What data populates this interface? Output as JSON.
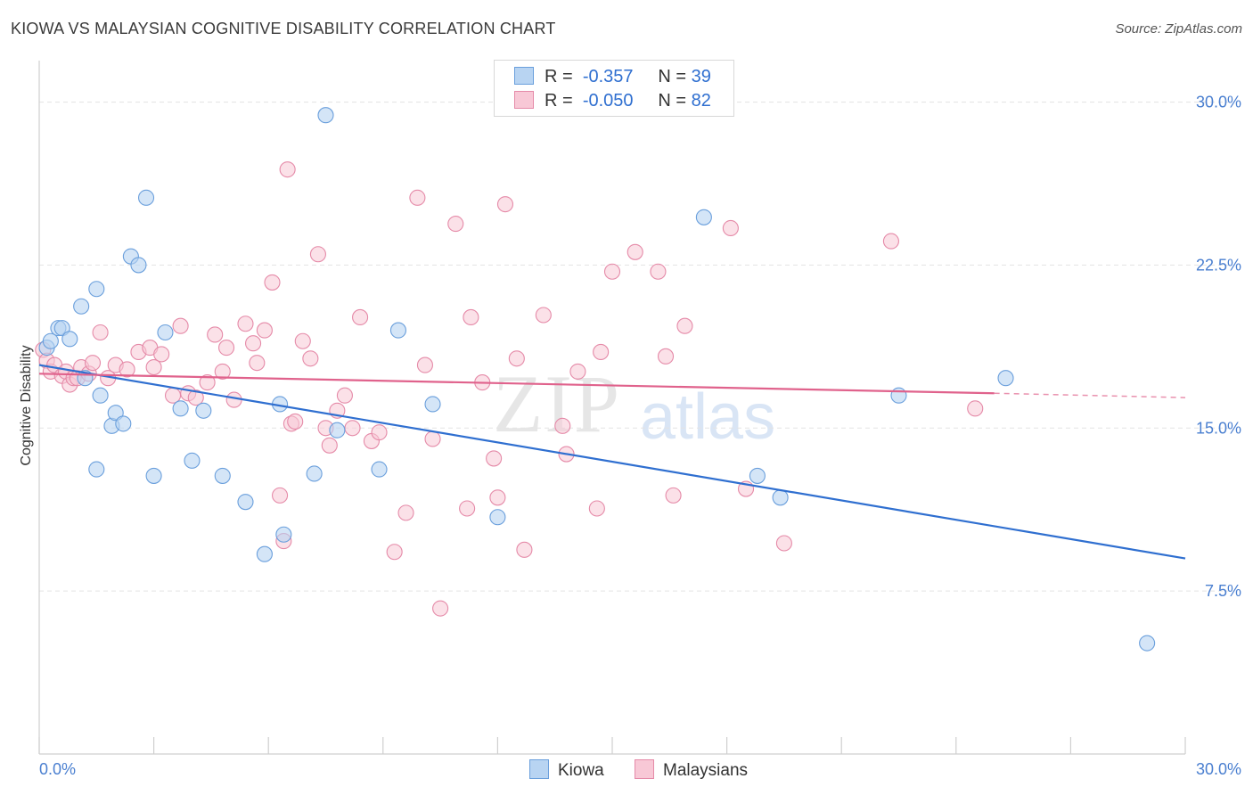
{
  "header": {
    "title": "KIOWA VS MALAYSIAN COGNITIVE DISABILITY CORRELATION CHART",
    "source": "Source: ZipAtlas.com"
  },
  "watermark": {
    "zip": "ZIP",
    "atlas": "atlas"
  },
  "legend": {
    "rows": [
      {
        "r_label": "R =",
        "r_value": "-0.357",
        "n_label": "N =",
        "n_value": "39"
      },
      {
        "r_label": "R =",
        "r_value": "-0.050",
        "n_label": "N =",
        "n_value": "82"
      }
    ]
  },
  "bottom_legend": {
    "kiowa": "Kiowa",
    "malaysians": "Malaysians"
  },
  "colors": {
    "kiowa_fill": "#b8d4f2",
    "kiowa_stroke": "#6a9fdc",
    "kiowa_line": "#2f6fd0",
    "malay_fill": "#f8c8d6",
    "malay_stroke": "#e58aa8",
    "malay_line": "#e0628c",
    "tick_text": "#4a7fd0",
    "grid": "#e3e3e3"
  },
  "chart_data": {
    "type": "scatter",
    "title": "KIOWA VS MALAYSIAN COGNITIVE DISABILITY CORRELATION CHART",
    "xlabel": "",
    "ylabel": "Cognitive Disability",
    "xlim": [
      0,
      30
    ],
    "ylim": [
      0,
      31.5
    ],
    "x_tick_labels": [
      "0.0%",
      "30.0%"
    ],
    "y_ticks": [
      7.5,
      15.0,
      22.5,
      30.0
    ],
    "y_tick_labels": [
      "7.5%",
      "15.0%",
      "22.5%",
      "30.0%"
    ],
    "grid": "horizontal dashed",
    "legend_position": "top-center",
    "series": [
      {
        "name": "Kiowa",
        "r": -0.357,
        "n": 39,
        "trend": {
          "x": [
            0.0,
            30.0
          ],
          "y": [
            17.9,
            9.0
          ]
        },
        "points": [
          [
            0.2,
            18.7
          ],
          [
            0.3,
            19.0
          ],
          [
            0.5,
            19.6
          ],
          [
            0.6,
            19.6
          ],
          [
            0.8,
            19.1
          ],
          [
            1.1,
            20.6
          ],
          [
            1.2,
            17.3
          ],
          [
            1.5,
            21.4
          ],
          [
            1.6,
            16.5
          ],
          [
            1.5,
            13.1
          ],
          [
            1.9,
            15.1
          ],
          [
            2.0,
            15.7
          ],
          [
            2.2,
            15.2
          ],
          [
            2.4,
            22.9
          ],
          [
            2.6,
            22.5
          ],
          [
            2.8,
            25.6
          ],
          [
            3.0,
            12.8
          ],
          [
            3.3,
            19.4
          ],
          [
            3.7,
            15.9
          ],
          [
            4.0,
            13.5
          ],
          [
            4.3,
            15.8
          ],
          [
            4.8,
            12.8
          ],
          [
            5.4,
            11.6
          ],
          [
            5.9,
            9.2
          ],
          [
            6.3,
            16.1
          ],
          [
            6.4,
            10.1
          ],
          [
            7.2,
            12.9
          ],
          [
            7.5,
            29.4
          ],
          [
            7.8,
            14.9
          ],
          [
            8.9,
            13.1
          ],
          [
            9.4,
            19.5
          ],
          [
            10.3,
            16.1
          ],
          [
            12.0,
            10.9
          ],
          [
            17.4,
            24.7
          ],
          [
            18.8,
            12.8
          ],
          [
            19.4,
            11.8
          ],
          [
            22.5,
            16.5
          ],
          [
            25.3,
            17.3
          ],
          [
            29.0,
            5.1
          ]
        ]
      },
      {
        "name": "Malaysians",
        "r": -0.05,
        "n": 82,
        "trend": {
          "x": [
            0.0,
            25.0
          ],
          "y": [
            17.5,
            16.6
          ]
        },
        "trend_dashed": {
          "x": [
            25.0,
            30.0
          ],
          "y": [
            16.6,
            16.4
          ]
        },
        "points": [
          [
            0.1,
            18.6
          ],
          [
            0.2,
            18.1
          ],
          [
            0.3,
            17.6
          ],
          [
            0.4,
            17.9
          ],
          [
            0.6,
            17.4
          ],
          [
            0.7,
            17.6
          ],
          [
            0.8,
            17.0
          ],
          [
            0.9,
            17.3
          ],
          [
            1.0,
            17.3
          ],
          [
            1.1,
            17.8
          ],
          [
            1.3,
            17.5
          ],
          [
            1.4,
            18.0
          ],
          [
            1.6,
            19.4
          ],
          [
            1.8,
            17.3
          ],
          [
            2.0,
            17.9
          ],
          [
            2.3,
            17.7
          ],
          [
            2.6,
            18.5
          ],
          [
            2.9,
            18.7
          ],
          [
            3.0,
            17.8
          ],
          [
            3.2,
            18.4
          ],
          [
            3.5,
            16.5
          ],
          [
            3.7,
            19.7
          ],
          [
            3.9,
            16.6
          ],
          [
            4.1,
            16.4
          ],
          [
            4.4,
            17.1
          ],
          [
            4.6,
            19.3
          ],
          [
            4.8,
            17.6
          ],
          [
            4.9,
            18.7
          ],
          [
            5.1,
            16.3
          ],
          [
            5.4,
            19.8
          ],
          [
            5.6,
            18.9
          ],
          [
            5.7,
            18.0
          ],
          [
            5.9,
            19.5
          ],
          [
            6.1,
            21.7
          ],
          [
            6.3,
            11.9
          ],
          [
            6.4,
            9.8
          ],
          [
            6.5,
            26.9
          ],
          [
            6.6,
            15.2
          ],
          [
            6.7,
            15.3
          ],
          [
            6.9,
            19.0
          ],
          [
            7.1,
            18.2
          ],
          [
            7.3,
            23.0
          ],
          [
            7.5,
            15.0
          ],
          [
            7.6,
            14.2
          ],
          [
            7.8,
            15.8
          ],
          [
            8.0,
            16.5
          ],
          [
            8.2,
            15.0
          ],
          [
            8.4,
            20.1
          ],
          [
            8.7,
            14.4
          ],
          [
            8.9,
            14.8
          ],
          [
            9.3,
            9.3
          ],
          [
            9.6,
            11.1
          ],
          [
            9.9,
            25.6
          ],
          [
            10.1,
            17.9
          ],
          [
            10.3,
            14.5
          ],
          [
            10.5,
            6.7
          ],
          [
            10.9,
            24.4
          ],
          [
            11.2,
            11.3
          ],
          [
            11.3,
            20.1
          ],
          [
            11.6,
            17.1
          ],
          [
            11.9,
            13.6
          ],
          [
            12.0,
            11.8
          ],
          [
            12.2,
            25.3
          ],
          [
            12.5,
            18.2
          ],
          [
            12.7,
            9.4
          ],
          [
            13.2,
            20.2
          ],
          [
            13.7,
            15.1
          ],
          [
            13.8,
            13.8
          ],
          [
            14.1,
            17.6
          ],
          [
            14.6,
            11.3
          ],
          [
            14.7,
            18.5
          ],
          [
            15.0,
            22.2
          ],
          [
            15.6,
            23.1
          ],
          [
            16.2,
            22.2
          ],
          [
            16.4,
            18.3
          ],
          [
            16.6,
            11.9
          ],
          [
            16.9,
            19.7
          ],
          [
            18.1,
            24.2
          ],
          [
            18.5,
            12.2
          ],
          [
            19.5,
            9.7
          ],
          [
            22.3,
            23.6
          ],
          [
            24.5,
            15.9
          ]
        ]
      }
    ]
  }
}
